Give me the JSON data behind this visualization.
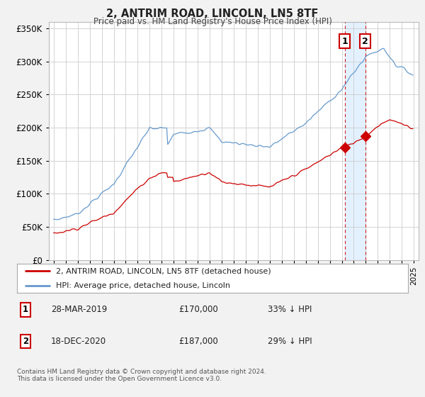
{
  "title": "2, ANTRIM ROAD, LINCOLN, LN5 8TF",
  "subtitle": "Price paid vs. HM Land Registry's House Price Index (HPI)",
  "ylim": [
    0,
    360000
  ],
  "yticks": [
    0,
    50000,
    100000,
    150000,
    200000,
    250000,
    300000,
    350000
  ],
  "background_color": "#f2f2f2",
  "plot_background": "#ffffff",
  "hpi_color": "#6699cc",
  "price_color": "#cc0000",
  "shade_color": "#ddeeff",
  "t1_year": 2019.24,
  "t1_price": 170000,
  "t2_year": 2020.96,
  "t2_price": 187000,
  "legend_property": "2, ANTRIM ROAD, LINCOLN, LN5 8TF (detached house)",
  "legend_hpi": "HPI: Average price, detached house, Lincoln",
  "footnote1_date": "28-MAR-2019",
  "footnote1_price": "£170,000",
  "footnote1_pct": "33% ↓ HPI",
  "footnote2_date": "18-DEC-2020",
  "footnote2_price": "£187,000",
  "footnote2_pct": "29% ↓ HPI",
  "copyright": "Contains HM Land Registry data © Crown copyright and database right 2024.\nThis data is licensed under the Open Government Licence v3.0."
}
